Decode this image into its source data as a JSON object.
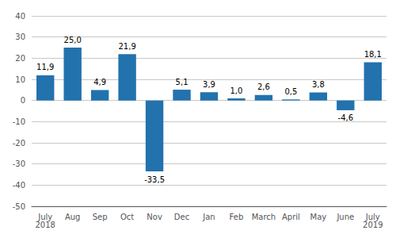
{
  "chart_data": {
    "type": "bar",
    "categories": [
      "July\n2018",
      "Aug",
      "Sep",
      "Oct",
      "Nov",
      "Dec",
      "Jan",
      "Feb",
      "March",
      "April",
      "May",
      "June",
      "July\n2019"
    ],
    "values": [
      11.9,
      25.0,
      4.9,
      21.9,
      -33.5,
      5.1,
      3.9,
      1.0,
      2.6,
      0.5,
      3.8,
      -4.6,
      18.1
    ],
    "value_labels": [
      "11,9",
      "25,0",
      "4,9",
      "21,9",
      "-33,5",
      "5,1",
      "3,9",
      "1,0",
      "2,6",
      "0,5",
      "3,8",
      "-4,6",
      "18,1"
    ],
    "data_labels": true,
    "color": "#2272AE",
    "ylim": [
      -50,
      40
    ],
    "yticks": [
      -50,
      -40,
      -30,
      -20,
      -10,
      0,
      10,
      20,
      30,
      40
    ],
    "grid": true
  }
}
